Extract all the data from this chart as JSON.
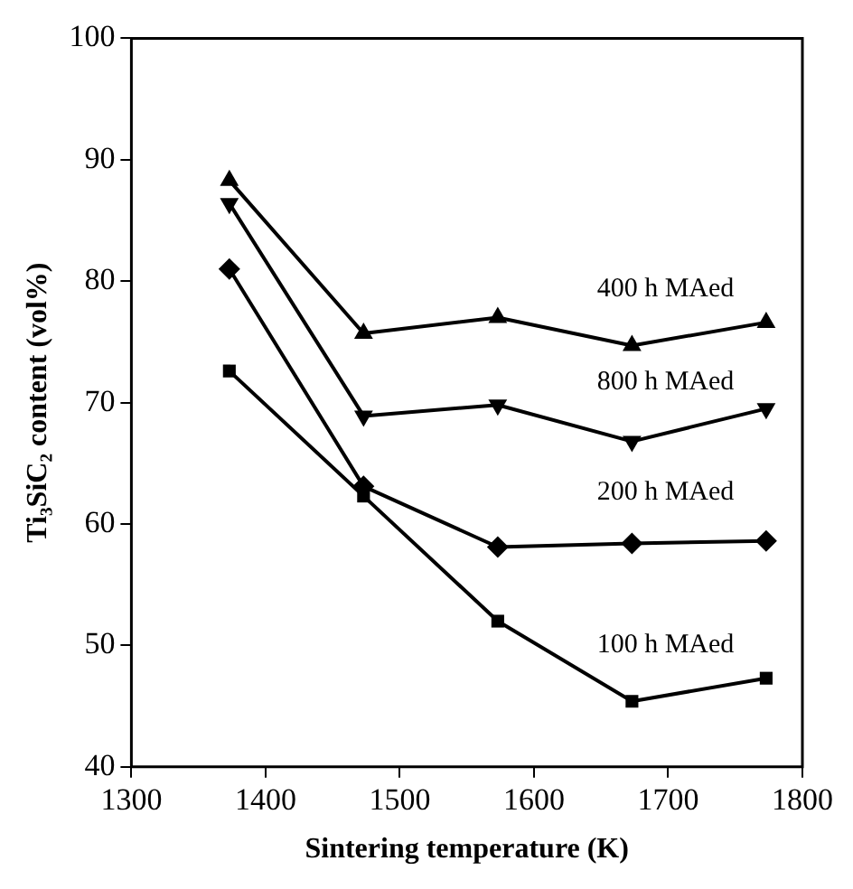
{
  "chart_data": {
    "type": "line",
    "xlabel": "Sintering temperature (K)",
    "ylabel": "Ti₃SiC₂ content (vol%)",
    "x": [
      1373,
      1473,
      1573,
      1673,
      1773
    ],
    "series": [
      {
        "name": "400 h MAed",
        "color": "#000000",
        "marker": "triangle",
        "values": [
          88.3,
          75.7,
          77.0,
          74.7,
          76.6
        ]
      },
      {
        "name": "800 h MAed",
        "color": "#000000",
        "marker": "triangle-down",
        "values": [
          86.4,
          68.9,
          69.8,
          66.8,
          69.5
        ]
      },
      {
        "name": "200 h MAed",
        "color": "#000000",
        "marker": "diamond",
        "values": [
          81.0,
          63.1,
          58.1,
          58.4,
          58.6
        ]
      },
      {
        "name": "100 h MAed",
        "color": "#000000",
        "marker": "square",
        "values": [
          72.6,
          62.3,
          52.0,
          45.4,
          47.3
        ]
      }
    ],
    "xlim": [
      1300,
      1800
    ],
    "xticks": [
      1300,
      1400,
      1500,
      1600,
      1700,
      1800
    ],
    "ylim": [
      40,
      100
    ],
    "yticks": [
      40,
      50,
      60,
      70,
      80,
      90,
      100
    ],
    "grid": false,
    "legend": false,
    "line_style": "solid"
  }
}
